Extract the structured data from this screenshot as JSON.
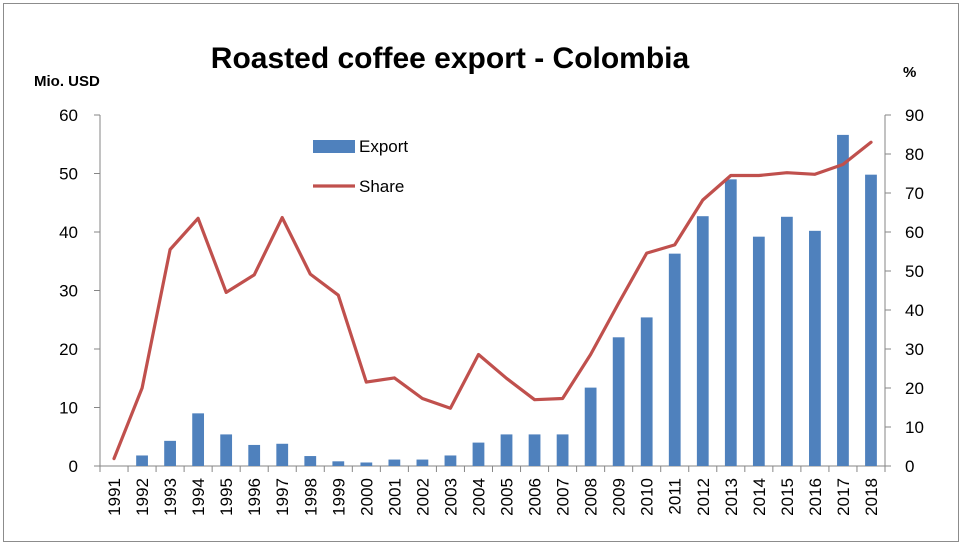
{
  "chart_data": {
    "type": "bar+line",
    "title": "Roasted coffee export - Colombia",
    "y_left_unit": "Mio. USD",
    "y_right_unit": "%",
    "ylim_left": [
      0,
      60
    ],
    "ylim_right": [
      0,
      90
    ],
    "yticks_left": [
      "0",
      "10",
      "20",
      "30",
      "40",
      "50",
      "60"
    ],
    "yticks_right": [
      "0",
      "10",
      "20",
      "30",
      "40",
      "50",
      "60",
      "70",
      "80",
      "90"
    ],
    "categories": [
      "1991",
      "1992",
      "1993",
      "1994",
      "1995",
      "1996",
      "1997",
      "1998",
      "1999",
      "2000",
      "2001",
      "2002",
      "2003",
      "2004",
      "2005",
      "2006",
      "2007",
      "2008",
      "2009",
      "2010",
      "2011",
      "2012",
      "2013",
      "2014",
      "2015",
      "2016",
      "2017",
      "2018"
    ],
    "series": [
      {
        "name": "Export",
        "type": "bar",
        "axis": "left",
        "color": "#4f81bd",
        "values": [
          0,
          1.8,
          4.3,
          9,
          5.4,
          3.6,
          3.8,
          1.7,
          0.8,
          0.6,
          1.1,
          1.1,
          1.8,
          4,
          5.4,
          5.4,
          5.4,
          13.4,
          22,
          25.4,
          36.3,
          42.7,
          49,
          39.2,
          42.6,
          40.2,
          56.6,
          49.8
        ]
      },
      {
        "name": "Share",
        "type": "line",
        "axis": "right",
        "color": "#c0504d",
        "values": [
          1.9,
          20,
          55.5,
          63.5,
          44.5,
          49,
          63.7,
          49.2,
          43.8,
          21.5,
          22.6,
          17.3,
          14.8,
          28.6,
          22.5,
          17,
          17.3,
          28.6,
          41.8,
          54.6,
          56.7,
          68.2,
          74.5,
          74.5,
          75.2,
          74.8,
          77.3,
          83
        ]
      }
    ],
    "legend": {
      "placement": "upper-left-inside"
    },
    "grid": false
  }
}
